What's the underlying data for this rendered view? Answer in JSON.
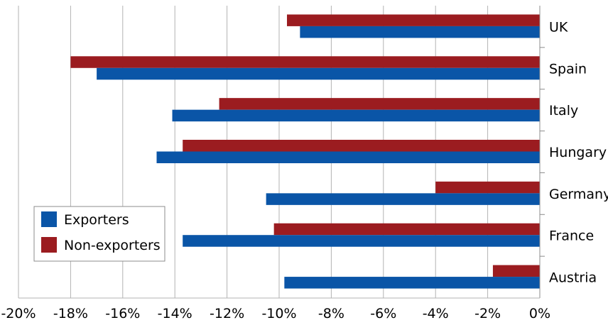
{
  "chart_data": {
    "type": "bar",
    "orientation": "horizontal",
    "categories": [
      "UK",
      "Spain",
      "Italy",
      "Hungary",
      "Germany",
      "France",
      "Austria"
    ],
    "series": [
      {
        "name": "Non-exporters",
        "color": "#9b1c20",
        "values": [
          -9.7,
          -18.0,
          -12.3,
          -13.7,
          -4.0,
          -10.2,
          -1.8
        ]
      },
      {
        "name": "Exporters",
        "color": "#0a55a7",
        "values": [
          -9.2,
          -17.0,
          -14.1,
          -14.7,
          -10.5,
          -13.7,
          -9.8
        ]
      }
    ],
    "legend_order": [
      "Exporters",
      "Non-exporters"
    ],
    "xlim": [
      -20,
      0
    ],
    "x_ticks": [
      -20,
      -18,
      -16,
      -14,
      -12,
      -10,
      -8,
      -6,
      -4,
      -2,
      0
    ],
    "x_tick_labels": [
      "-20%",
      "-18%",
      "-16%",
      "-14%",
      "-12%",
      "-10%",
      "-8%",
      "-6%",
      "-4%",
      "-2%",
      "0%"
    ],
    "title": "",
    "xlabel": "",
    "ylabel": "",
    "grid": "vertical",
    "legend_position": "bottom-left"
  }
}
